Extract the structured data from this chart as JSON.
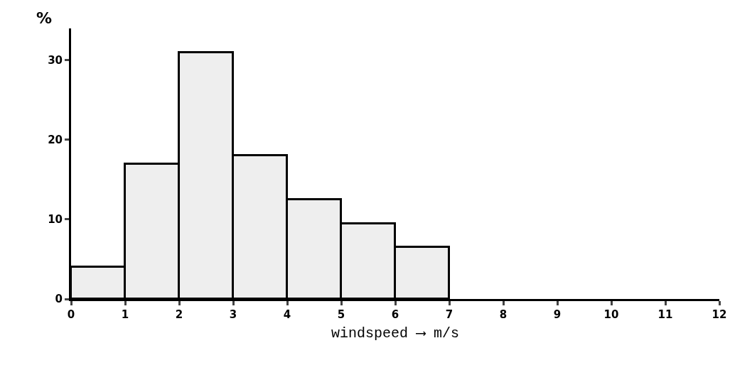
{
  "chart_data": {
    "type": "histogram",
    "xlabel": "windspeed ⟶ m/s",
    "ylabel": "%",
    "bins": [
      0,
      1,
      2,
      3,
      4,
      5,
      6,
      7
    ],
    "values": [
      4,
      17,
      31,
      18,
      12.5,
      9.5,
      6.5
    ],
    "color": "#eeeeee",
    "xlim": [
      0,
      12
    ],
    "xticks": [
      0,
      1,
      2,
      3,
      4,
      5,
      6,
      7,
      8,
      9,
      10,
      11,
      12
    ],
    "ylim": [
      0,
      34
    ],
    "yticks": [
      0,
      10,
      20,
      30
    ],
    "grid": false
  }
}
